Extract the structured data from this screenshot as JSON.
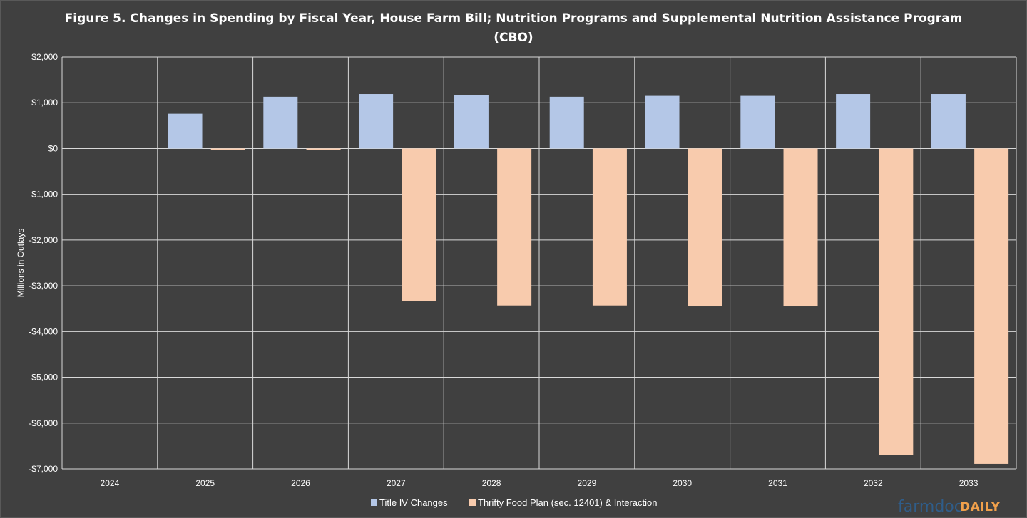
{
  "title_line1": "Figure 5. Changes in Spending by Fiscal Year, House Farm Bill; Nutrition Programs and Supplemental Nutrition Assistance Program",
  "title_line2": "(CBO)",
  "watermark": {
    "part1": "farmdoc",
    "part2": "DAILY"
  },
  "chart_data": {
    "type": "bar",
    "title": "Figure 5. Changes in Spending by Fiscal Year, House Farm Bill; Nutrition Programs and Supplemental Nutrition Assistance Program (CBO)",
    "xlabel": "",
    "ylabel": "Millions in Outlays",
    "ylim": [
      -7000,
      2000
    ],
    "yticks": [
      2000,
      1000,
      0,
      -1000,
      -2000,
      -3000,
      -4000,
      -5000,
      -6000,
      -7000
    ],
    "ytick_labels": [
      "$2,000",
      "$1,000",
      "$0",
      "-$1,000",
      "-$2,000",
      "-$3,000",
      "-$4,000",
      "-$5,000",
      "-$6,000",
      "-$7,000"
    ],
    "grid": true,
    "legend_position": "bottom",
    "categories": [
      "2024",
      "2025",
      "2026",
      "2027",
      "2028",
      "2029",
      "2030",
      "2031",
      "2032",
      "2033"
    ],
    "series": [
      {
        "name": "Title IV Changes",
        "color": "#b4c7e7",
        "values": [
          0,
          760,
          1130,
          1190,
          1160,
          1130,
          1150,
          1150,
          1190,
          1190
        ]
      },
      {
        "name": "Thrifty Food Plan (sec. 12401) & Interaction",
        "color": "#f8cbad",
        "values": [
          0,
          -25,
          -25,
          -3330,
          -3430,
          -3430,
          -3450,
          -3450,
          -6690,
          -6890
        ]
      }
    ]
  }
}
